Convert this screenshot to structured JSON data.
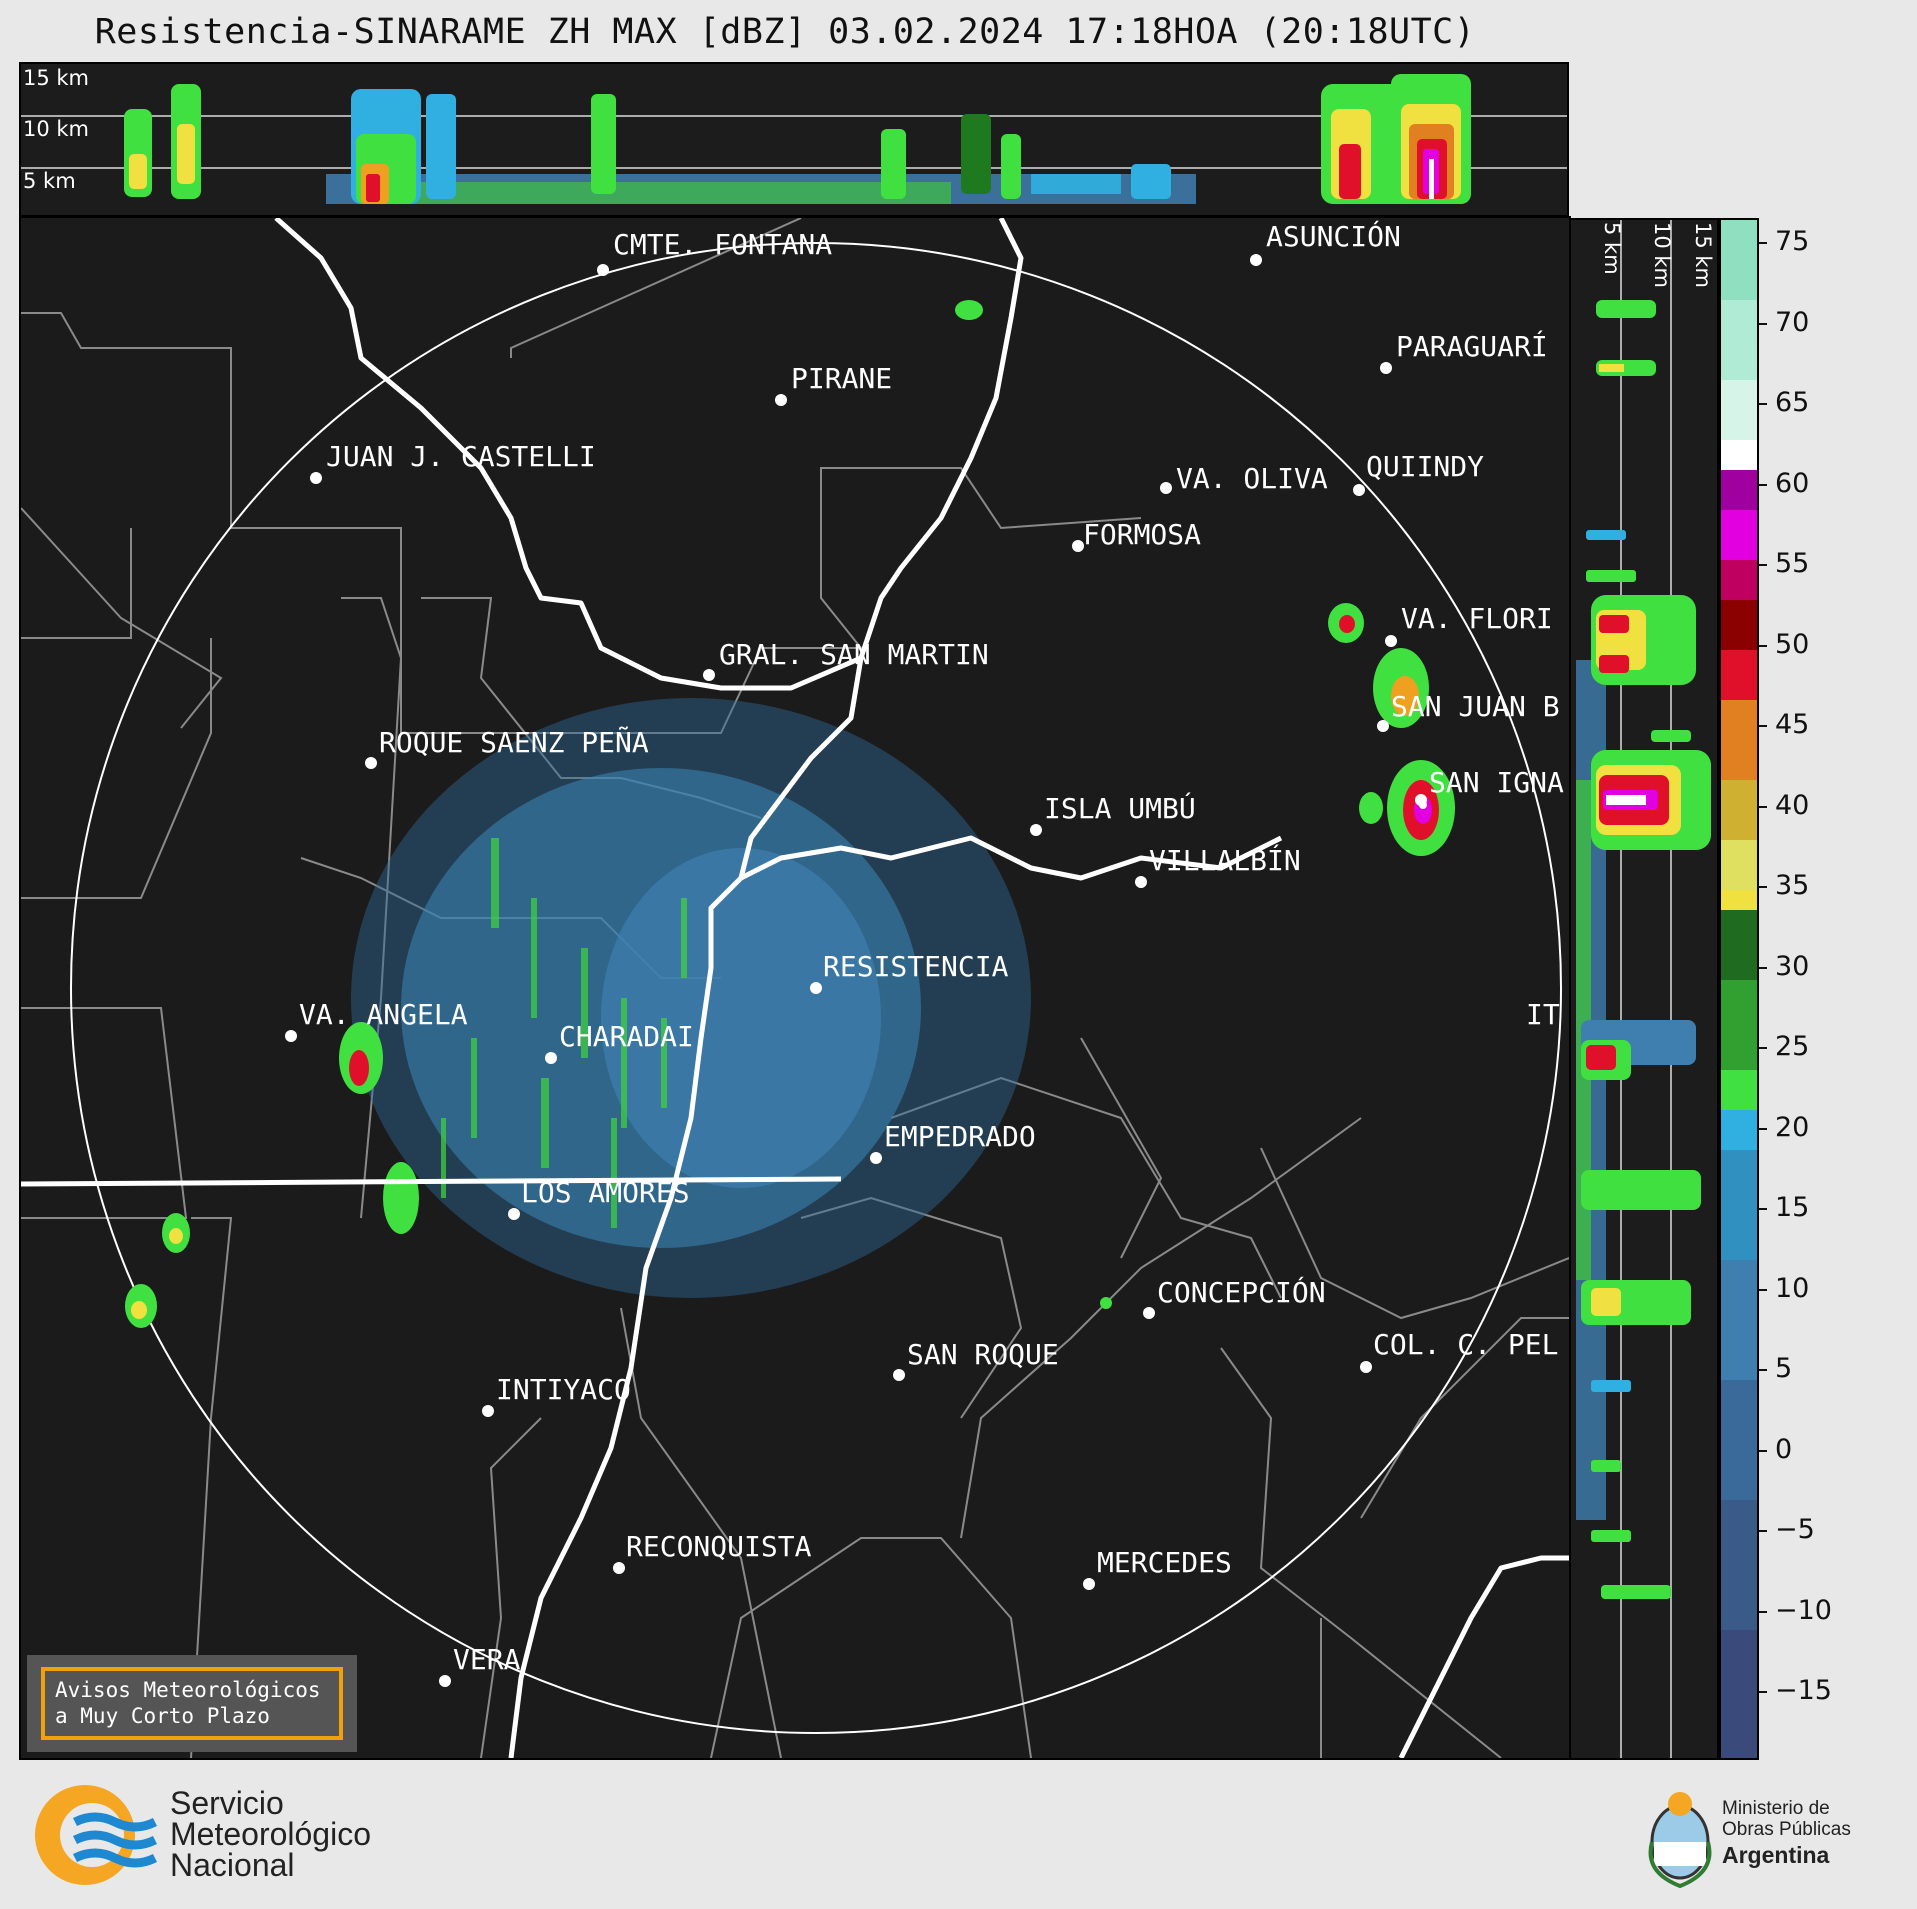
{
  "title": "Resistencia-SINARAME ZH MAX [dBZ] 03.02.2024 17:18HOA (20:18UTC)",
  "top_section": {
    "altitude_labels": [
      "15 km",
      "10 km",
      "5 km"
    ]
  },
  "right_section": {
    "altitude_labels": [
      "5 km",
      "10 km",
      "15 km"
    ]
  },
  "colorbar": {
    "unit": "dBZ",
    "ticks": [
      "75",
      "70",
      "65",
      "60",
      "55",
      "50",
      "45",
      "40",
      "35",
      "30",
      "25",
      "20",
      "15",
      "10",
      "5",
      "0",
      "−5",
      "−10",
      "−15"
    ],
    "colors": {
      "teal_high": "#8fe0c0",
      "white": "#ffffff",
      "magenta": "#e000e0",
      "dark_red": "#8b0000",
      "red": "#e0102a",
      "orange": "#e08020",
      "yellow": "#f0e040",
      "dark_green": "#1f6b1f",
      "green": "#40e040",
      "cyan": "#30b0e0",
      "blue": "#3f7fb0",
      "slate": "#3a4a7a"
    }
  },
  "cities": [
    "CMTE. FONTANA",
    "ASUNCIÓN",
    "PARAGUARÍ",
    "PIRANE",
    "JUAN J. CASTELLI",
    "VA. OLIVA",
    "QUIINDY",
    "FORMOSA",
    "VA. FLORI",
    "GRAL. SAN MARTIN",
    "SAN JUAN B",
    "ROQUE SAENZ PEÑA",
    "SAN IGNA",
    "ISLA UMBÚ",
    "VILLALBÍN",
    "RESISTENCIA",
    "VA. ANGELA",
    "CHARADAI",
    "IT",
    "EMPEDRADO",
    "LOS AMORES",
    "CONCEPCIÓN",
    "SAN ROQUE",
    "COL. C. PEL",
    "INTIYACO",
    "RECONQUISTA",
    "MERCEDES",
    "VERA"
  ],
  "warning": {
    "line1": "Avisos Meteorológicos",
    "line2": "a Muy Corto Plazo"
  },
  "footer": {
    "smn_line1": "Servicio",
    "smn_line2": "Meteorológico",
    "smn_line3": "Nacional",
    "ministry_line1": "Ministerio de",
    "ministry_line2": "Obras Públicas",
    "ministry_line3": "Argentina"
  }
}
